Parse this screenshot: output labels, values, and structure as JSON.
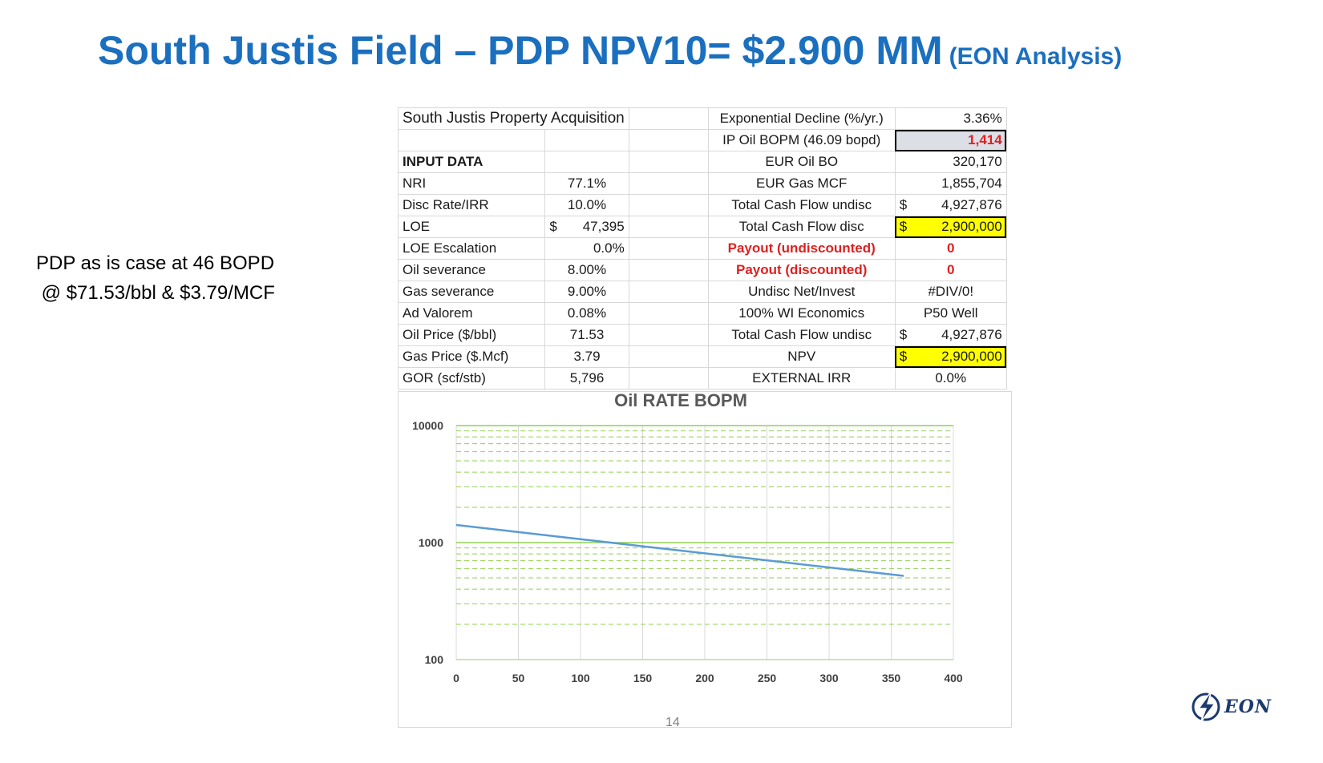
{
  "title": {
    "main": "South Justis Field – PDP NPV10= $2.900 MM",
    "sub": "(EON Analysis)"
  },
  "note": {
    "line1": "PDP as is case at 46 BOPD",
    "line2": " @ $71.53/bbl & $3.79/MCF"
  },
  "sheet": {
    "heading": "South Justis Property Acquisition",
    "input_heading": "INPUT DATA",
    "inputs": [
      {
        "label": "NRI",
        "value": "77.1%"
      },
      {
        "label": "Disc Rate/IRR",
        "value": "10.0%"
      },
      {
        "label": "LOE",
        "dollar": "$",
        "value": "47,395"
      },
      {
        "label": "LOE Escalation",
        "value": "0.0%"
      },
      {
        "label": "Oil severance",
        "value": "8.00%"
      },
      {
        "label": "Gas severance",
        "value": "9.00%"
      },
      {
        "label": "Ad Valorem",
        "value": "0.08%"
      },
      {
        "label": "Oil Price ($/bbl)",
        "value": "71.53"
      },
      {
        "label": "Gas Price ($.Mcf)",
        "value": "3.79"
      },
      {
        "label": "GOR (scf/stb)",
        "value": "5,796"
      }
    ],
    "outputs": [
      {
        "label": "Exponential Decline (%/yr.)",
        "value": "3.36%"
      },
      {
        "label": "IP Oil BOPM (46.09 bopd)",
        "value": "1,414"
      },
      {
        "label": "EUR Oil BO",
        "value": "320,170"
      },
      {
        "label": "EUR Gas  MCF",
        "value": "1,855,704"
      },
      {
        "label": "Total Cash Flow undisc",
        "dollar": "$",
        "value": "4,927,876"
      },
      {
        "label": "Total Cash Flow disc",
        "dollar": "$",
        "value": "2,900,000"
      },
      {
        "label": "Payout (undiscounted)",
        "value": "0"
      },
      {
        "label": "Payout (discounted)",
        "value": "0"
      },
      {
        "label": "Undisc Net/Invest",
        "value": "#DIV/0!"
      },
      {
        "label": "100% WI Economics",
        "value": "P50 Well"
      },
      {
        "label": "Total Cash Flow undisc",
        "dollar": "$",
        "value": "4,927,876"
      },
      {
        "label": "NPV",
        "dollar": "$",
        "value": "2,900,000"
      },
      {
        "label": "EXTERNAL IRR",
        "value": "0.0%"
      }
    ]
  },
  "chart_data": {
    "type": "line",
    "title": "Oil RATE BOPM",
    "xlabel": "",
    "ylabel": "",
    "xlim": [
      0,
      400
    ],
    "ylim": [
      100,
      10000
    ],
    "yscale": "log",
    "x_ticks": [
      "0",
      "50",
      "100",
      "150",
      "200",
      "250",
      "300",
      "350",
      "400"
    ],
    "y_ticks": [
      "100",
      "1000",
      "10000"
    ],
    "grid": true,
    "series": [
      {
        "name": "Oil rate",
        "x": [
          0,
          50,
          100,
          150,
          200,
          250,
          300,
          360
        ],
        "y": [
          1414,
          1230,
          1070,
          930,
          810,
          705,
          613,
          520
        ],
        "color": "#5b9bd5"
      }
    ]
  },
  "page_number": "14",
  "logo": {
    "text": "EON"
  }
}
